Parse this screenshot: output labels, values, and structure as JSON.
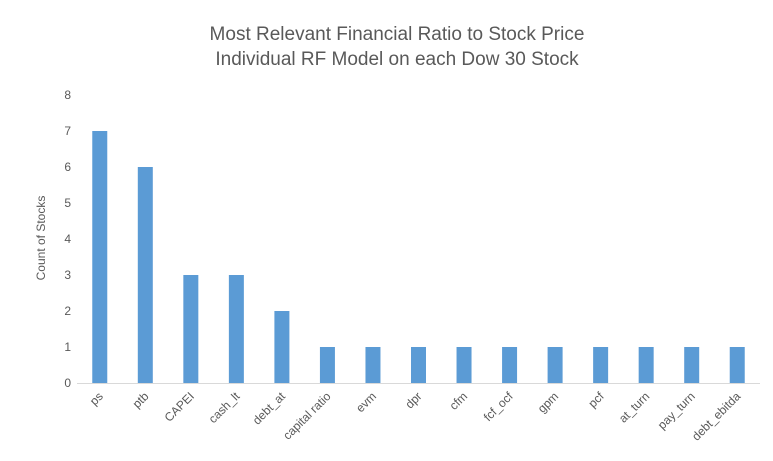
{
  "chart_data": {
    "type": "bar",
    "title": [
      "Most Relevant Financial Ratio to Stock Price",
      "Individual RF Model on each Dow 30 Stock"
    ],
    "xlabel": "",
    "ylabel": "Count of Stocks",
    "ylim": [
      0,
      8
    ],
    "yticks": [
      0,
      1,
      2,
      3,
      4,
      5,
      6,
      7,
      8
    ],
    "grid": false,
    "legend": "none",
    "bar_color": "#5b9bd5",
    "categories": [
      "ps",
      "ptb",
      "CAPEI",
      "cash_lt",
      "debt_at",
      "capital ratio",
      "evm",
      "dpr",
      "cfm",
      "fcf_ocf",
      "gpm",
      "pcf",
      "at_turn",
      "pay_turn",
      "debt_ebitda"
    ],
    "values": [
      7,
      6,
      3,
      3,
      2,
      1,
      1,
      1,
      1,
      1,
      1,
      1,
      1,
      1,
      1
    ]
  }
}
